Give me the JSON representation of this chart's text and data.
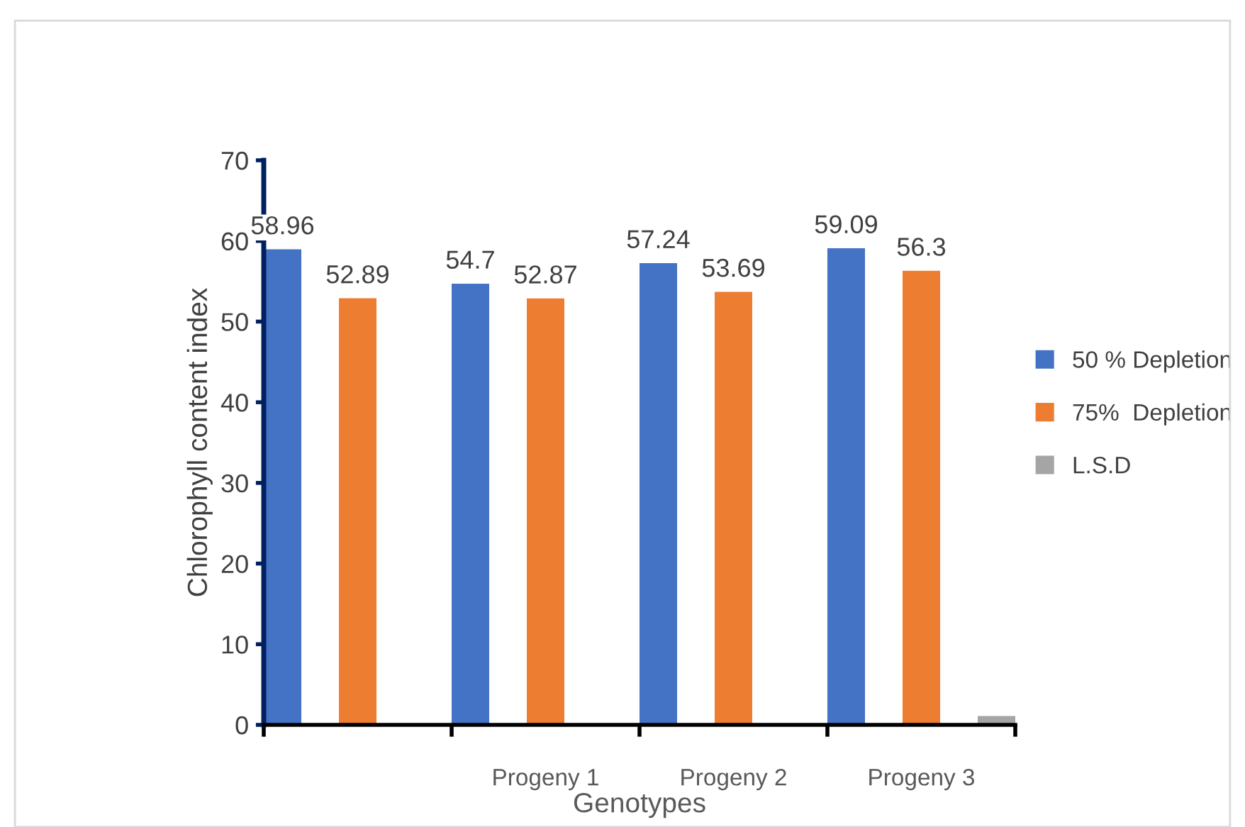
{
  "chart_data": {
    "type": "bar",
    "xlabel": "Genotypes",
    "ylabel": "Chlorophyll content index",
    "categories": [
      null,
      "Progeny 1",
      "Progeny 2",
      "Progeny 3"
    ],
    "series": [
      {
        "name": "50 % Depletion",
        "color": "#4472c4",
        "values": [
          58.96,
          54.7,
          57.24,
          59.09
        ],
        "value_labels": [
          "58.96",
          "54.7",
          "57.24",
          "59.09"
        ]
      },
      {
        "name": "75%  Depletion",
        "color": "#ed7d31",
        "values": [
          52.89,
          52.87,
          53.69,
          56.3
        ],
        "value_labels": [
          "52.89",
          "52.87",
          "53.69",
          "56.3"
        ]
      },
      {
        "name": "L.S.D",
        "color": "#a5a5a5",
        "values": [
          null,
          null,
          null,
          1.1
        ]
      }
    ],
    "ylim": [
      0,
      70
    ],
    "yticks": [
      0,
      10,
      20,
      30,
      40,
      50,
      60,
      70
    ],
    "grid": false,
    "legend": "right"
  }
}
